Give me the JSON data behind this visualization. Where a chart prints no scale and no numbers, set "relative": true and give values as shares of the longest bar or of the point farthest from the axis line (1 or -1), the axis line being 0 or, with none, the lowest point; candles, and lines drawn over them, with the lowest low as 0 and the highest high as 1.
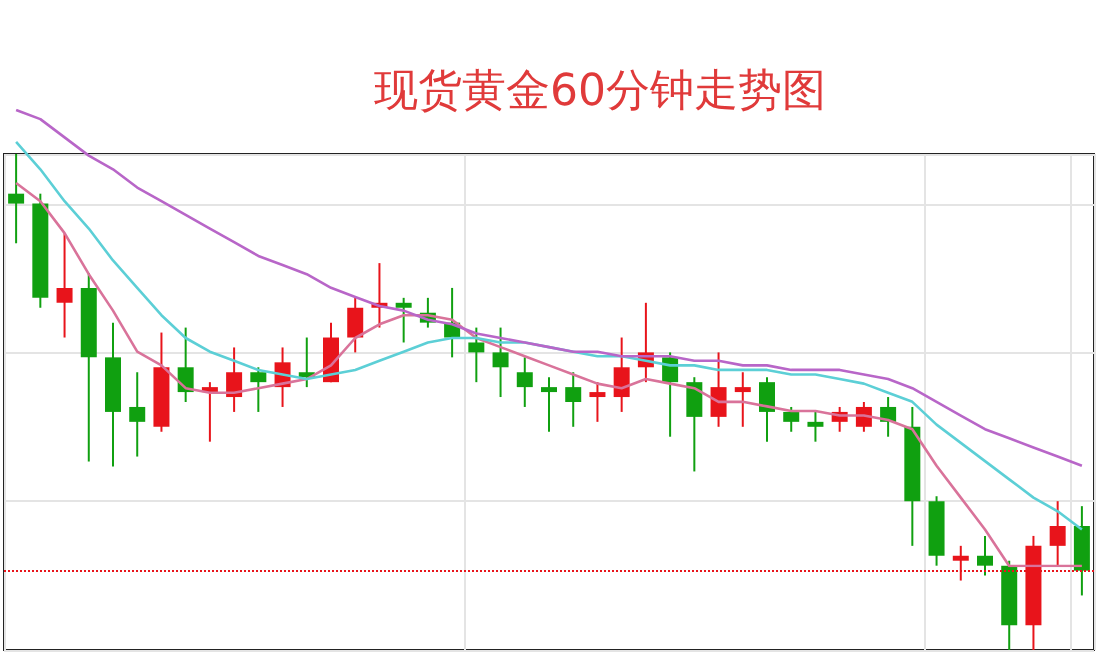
{
  "chart_data": [
    {
      "type": "candlestick",
      "title": "现货黄金60分钟走势图",
      "relative": true,
      "grid": true,
      "categories": [
        null,
        null,
        null,
        null,
        null,
        null,
        null,
        null,
        null,
        null,
        null,
        null,
        null,
        null,
        null,
        null,
        null,
        null,
        null,
        null,
        null,
        null,
        null,
        null,
        null,
        null,
        null,
        null,
        null,
        null,
        null,
        null,
        null,
        null,
        null,
        null,
        null,
        null,
        null,
        null,
        null,
        null,
        null,
        null,
        null
      ],
      "ohlc": [
        [
          0.92,
          1,
          0.82,
          0.9
        ],
        [
          0.9,
          0.92,
          0.69,
          0.71
        ],
        [
          0.7,
          0.84,
          0.63,
          0.73
        ],
        [
          0.73,
          0.76,
          0.38,
          0.59
        ],
        [
          0.59,
          0.66,
          0.37,
          0.48
        ],
        [
          0.49,
          0.56,
          0.39,
          0.46
        ],
        [
          0.45,
          0.64,
          0.44,
          0.57
        ],
        [
          0.57,
          0.65,
          0.5,
          0.52
        ],
        [
          0.52,
          0.54,
          0.42,
          0.53
        ],
        [
          0.51,
          0.61,
          0.48,
          0.56
        ],
        [
          0.56,
          0.57,
          0.48,
          0.54
        ],
        [
          0.53,
          0.61,
          0.49,
          0.58
        ],
        [
          0.56,
          0.63,
          0.53,
          0.55
        ],
        [
          0.54,
          0.66,
          0.54,
          0.63
        ],
        [
          0.63,
          0.71,
          0.6,
          0.69
        ],
        [
          0.69,
          0.78,
          0.65,
          0.7
        ],
        [
          0.7,
          0.71,
          0.62,
          0.69
        ],
        [
          0.68,
          0.71,
          0.65,
          0.66
        ],
        [
          0.66,
          0.73,
          0.59,
          0.63
        ],
        [
          0.62,
          0.65,
          0.54,
          0.6
        ],
        [
          0.6,
          0.65,
          0.51,
          0.57
        ],
        [
          0.56,
          0.59,
          0.49,
          0.53
        ],
        [
          0.53,
          0.55,
          0.44,
          0.52
        ],
        [
          0.53,
          0.56,
          0.45,
          0.5
        ],
        [
          0.51,
          0.54,
          0.46,
          0.52
        ],
        [
          0.51,
          0.63,
          0.48,
          0.57
        ],
        [
          0.57,
          0.7,
          0.54,
          0.6
        ],
        [
          0.59,
          0.6,
          0.43,
          0.54
        ],
        [
          0.54,
          0.55,
          0.36,
          0.47
        ],
        [
          0.47,
          0.6,
          0.45,
          0.53
        ],
        [
          0.52,
          0.56,
          0.45,
          0.53
        ],
        [
          0.54,
          0.55,
          0.42,
          0.48
        ],
        [
          0.48,
          0.49,
          0.44,
          0.46
        ],
        [
          0.46,
          0.48,
          0.42,
          0.45
        ],
        [
          0.46,
          0.49,
          0.44,
          0.48
        ],
        [
          0.45,
          0.5,
          0.44,
          0.49
        ],
        [
          0.49,
          0.51,
          0.43,
          0.46
        ],
        [
          0.45,
          0.49,
          0.21,
          0.3
        ],
        [
          0.3,
          0.31,
          0.17,
          0.19
        ],
        [
          0.18,
          0.21,
          0.14,
          0.19
        ],
        [
          0.19,
          0.23,
          0.15,
          0.17
        ],
        [
          0.17,
          0.18,
          0,
          0.05
        ],
        [
          0.05,
          0.23,
          0,
          0.21
        ],
        [
          0.21,
          0.3,
          0.17,
          0.25
        ],
        [
          0.25,
          0.29,
          0.11,
          0.16
        ]
      ],
      "colors": [
        "#10a010",
        "#10a010",
        "#e8141b",
        "#10a010",
        "#10a010",
        "#10a010",
        "#e8141b",
        "#10a010",
        "#e8141b",
        "#e8141b",
        "#10a010",
        "#e8141b",
        "#10a010",
        "#e8141b",
        "#e8141b",
        "#e8141b",
        "#10a010",
        "#10a010",
        "#10a010",
        "#10a010",
        "#10a010",
        "#10a010",
        "#10a010",
        "#10a010",
        "#e8141b",
        "#e8141b",
        "#e8141b",
        "#10a010",
        "#10a010",
        "#e8141b",
        "#e8141b",
        "#10a010",
        "#10a010",
        "#10a010",
        "#e8141b",
        "#e8141b",
        "#10a010",
        "#10a010",
        "#10a010",
        "#e8141b",
        "#10a010",
        "#10a010",
        "#e8141b",
        "#e8141b",
        "#10a010"
      ],
      "ref_lines": [
        {
          "axis": "y",
          "value": 0.16,
          "color": "#e8141b",
          "line_style": "dotted"
        }
      ]
    },
    {
      "type": "line",
      "relative": true,
      "marker": "none",
      "categories": [
        null,
        null,
        null,
        null,
        null,
        null,
        null,
        null,
        null,
        null,
        null,
        null,
        null,
        null,
        null,
        null,
        null,
        null,
        null,
        null,
        null,
        null,
        null,
        null,
        null,
        null,
        null,
        null,
        null,
        null,
        null,
        null,
        null,
        null,
        null,
        null,
        null,
        null,
        null,
        null,
        null,
        null,
        null,
        null,
        null
      ],
      "series": [
        {
          "color": "#d9739a",
          "values": [
            0.84,
            0.8,
            0.73,
            0.64,
            0.56,
            0.47,
            0.44,
            0.39,
            0.38,
            0.38,
            0.39,
            0.4,
            0.41,
            0.44,
            0.5,
            0.53,
            0.55,
            0.55,
            0.54,
            0.5,
            0.48,
            0.46,
            0.44,
            0.42,
            0.4,
            0.39,
            0.41,
            0.4,
            0.39,
            0.36,
            0.36,
            0.35,
            0.34,
            0.34,
            0.33,
            0.33,
            0.32,
            0.3,
            0.22,
            0.15,
            0.08,
            0,
            0,
            0,
            0
          ]
        },
        {
          "color": "#5ccfd6",
          "values": [
            0.93,
            0.87,
            0.8,
            0.74,
            0.67,
            0.61,
            0.55,
            0.5,
            0.47,
            0.45,
            0.43,
            0.42,
            0.41,
            0.42,
            0.43,
            0.45,
            0.47,
            0.49,
            0.5,
            0.5,
            0.49,
            0.49,
            0.48,
            0.47,
            0.46,
            0.46,
            0.45,
            0.44,
            0.44,
            0.43,
            0.43,
            0.43,
            0.42,
            0.42,
            0.41,
            0.4,
            0.38,
            0.36,
            0.31,
            0.27,
            0.23,
            0.19,
            0.15,
            0.12,
            0.08
          ]
        },
        {
          "color": "#b866c8",
          "values": [
            1,
            0.98,
            0.94,
            0.9,
            0.87,
            0.83,
            0.8,
            0.77,
            0.74,
            0.71,
            0.68,
            0.66,
            0.64,
            0.61,
            0.59,
            0.57,
            0.56,
            0.54,
            0.53,
            0.51,
            0.5,
            0.49,
            0.48,
            0.47,
            0.47,
            0.46,
            0.46,
            0.46,
            0.45,
            0.45,
            0.44,
            0.44,
            0.43,
            0.43,
            0.43,
            0.42,
            0.41,
            0.39,
            0.36,
            0.33,
            0.3,
            0.28,
            0.26,
            0.24,
            0.22
          ]
        }
      ]
    }
  ]
}
